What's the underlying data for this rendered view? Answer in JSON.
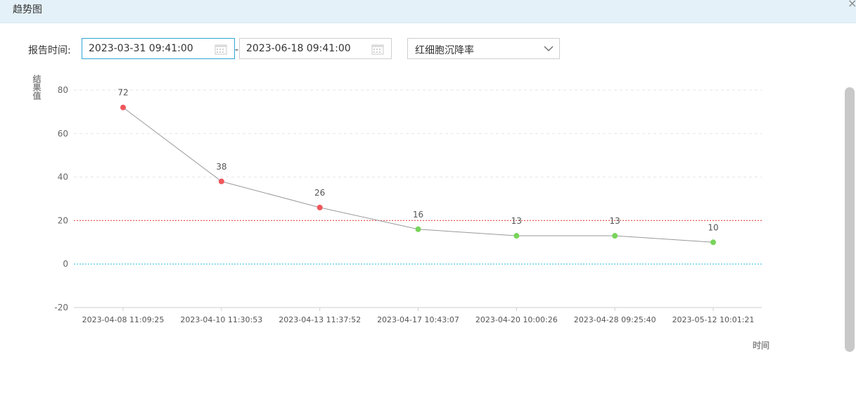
{
  "window": {
    "title": "趋势图",
    "close_glyph": "×"
  },
  "filters": {
    "label": "报告时间:",
    "start_date": "2023-03-31 09:41:00",
    "separator": "-",
    "end_date": "2023-06-18 09:41:00",
    "item_selected": "红细胞沉降率"
  },
  "icons": {
    "calendar": "calendar-icon",
    "dropdown": "chevron-down-icon",
    "close": "close-icon"
  },
  "colors": {
    "high_point": "#f0575c",
    "normal_point": "#79d45a",
    "line": "#999999",
    "upper_ref_line": "#e85a5a",
    "lower_ref_line": "#3cc3e0",
    "accent_border": "#2fa6d6"
  },
  "chart_data": {
    "type": "line",
    "xlabel": "时间",
    "ylabel": "结果值",
    "ylim": [
      -20,
      80
    ],
    "yticks": [
      -20,
      0,
      20,
      40,
      60,
      80
    ],
    "grid": "horizontal dashed",
    "categories": [
      "2023-04-08 11:09:25",
      "2023-04-10 11:30:53",
      "2023-04-13 11:37:52",
      "2023-04-17 10:43:07",
      "2023-04-20 10:00:26",
      "2023-04-28 09:25:40",
      "2023-05-12 10:01:21"
    ],
    "values": [
      72,
      38,
      26,
      16,
      13,
      13,
      10
    ],
    "reference_lines": {
      "upper": 20,
      "lower": 0
    }
  }
}
